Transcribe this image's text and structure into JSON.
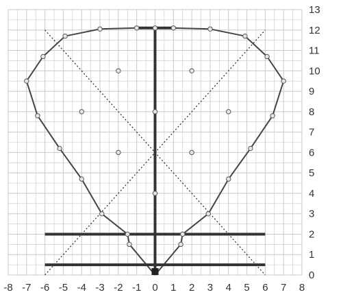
{
  "chart_data": {
    "type": "scatter",
    "title": "",
    "xlabel": "",
    "ylabel": "",
    "xlim": [
      -8,
      8
    ],
    "ylim": [
      0,
      13
    ],
    "grid": true,
    "x_ticks": [
      -8,
      -7,
      -6,
      -5,
      -4,
      -3,
      -2,
      -1,
      0,
      1,
      2,
      3,
      4,
      5,
      6,
      7,
      8
    ],
    "y_ticks": [
      0,
      1,
      2,
      3,
      4,
      5,
      6,
      7,
      8,
      9,
      10,
      11,
      12,
      13
    ],
    "outline_path": [
      [
        0,
        0
      ],
      [
        -1.4,
        1.5
      ],
      [
        -1.5,
        2
      ],
      [
        -2.9,
        3
      ],
      [
        -4,
        4.7
      ],
      [
        -5.2,
        6.2
      ],
      [
        -6.4,
        7.8
      ],
      [
        -7,
        9.5
      ],
      [
        -6.1,
        10.7
      ],
      [
        -4.9,
        11.7
      ],
      [
        -3,
        12.05
      ],
      [
        -1,
        12.1
      ],
      [
        0,
        12.1
      ],
      [
        1,
        12.1
      ],
      [
        3,
        12.05
      ],
      [
        4.9,
        11.7
      ],
      [
        6.1,
        10.7
      ],
      [
        7,
        9.5
      ],
      [
        6.4,
        7.8
      ],
      [
        5.2,
        6.2
      ],
      [
        4,
        4.7
      ],
      [
        2.9,
        3
      ],
      [
        1.5,
        2
      ],
      [
        1.4,
        1.5
      ],
      [
        0,
        0
      ]
    ],
    "inner_points": [
      [
        -2,
        10
      ],
      [
        2,
        10
      ],
      [
        -4,
        8
      ],
      [
        0,
        8
      ],
      [
        4,
        8
      ],
      [
        -2,
        6
      ],
      [
        2,
        6
      ],
      [
        0,
        4
      ]
    ],
    "vertical_axis_line": {
      "x": 0,
      "y_from": 0,
      "y_to": 12.1
    },
    "top_cap": {
      "x_from": -1,
      "x_to": 1,
      "y": 12.1
    },
    "base_marker": {
      "x": 0,
      "y": 0
    },
    "horizontal_bars": [
      {
        "x_from": -6,
        "x_to": 6,
        "y": 2
      },
      {
        "x_from": -6,
        "x_to": 6,
        "y": 0.5
      }
    ],
    "diagonals": [
      {
        "from": [
          -6,
          0
        ],
        "to": [
          6,
          12
        ]
      },
      {
        "from": [
          -6,
          12
        ],
        "to": [
          6,
          0
        ]
      }
    ],
    "colors": {
      "grid": "#c8c8c8",
      "outline": "#444444",
      "heavy": "#333333",
      "marker_fill": "#e6e6e6",
      "marker_stroke": "#555555",
      "tick_text": "#333333"
    }
  }
}
